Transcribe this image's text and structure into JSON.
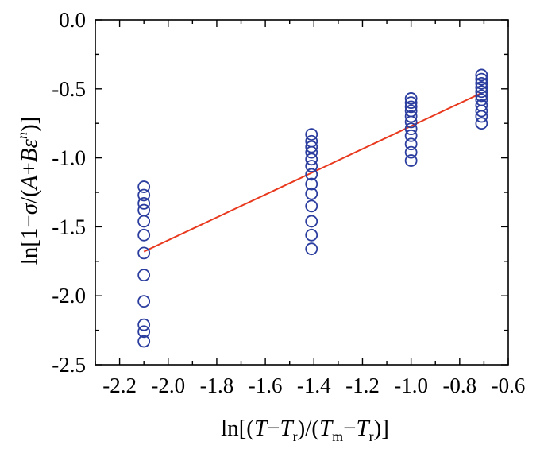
{
  "chart_data": {
    "type": "scatter",
    "title": "",
    "xlabel": "ln[(T−Tr)/(Tm−Tr)]",
    "ylabel": "ln[1−σ/(A+Bεⁿ)]",
    "xlim": [
      -2.3,
      -0.6
    ],
    "ylim": [
      -2.5,
      0.0
    ],
    "xticks": [
      "-2.2",
      "-2.0",
      "-1.8",
      "-1.6",
      "-1.4",
      "-1.2",
      "-1.0",
      "-0.8",
      "-0.6"
    ],
    "yticks": [
      "0.0",
      "-0.5",
      "-1.0",
      "-1.5",
      "-2.0",
      "-2.5"
    ],
    "grid": false,
    "series": [
      {
        "marker": "open-circle",
        "color": "#2b3d9e",
        "points": [
          [
            -2.1,
            -1.21
          ],
          [
            -2.1,
            -1.27
          ],
          [
            -2.1,
            -1.33
          ],
          [
            -2.1,
            -1.38
          ],
          [
            -2.1,
            -1.46
          ],
          [
            -2.1,
            -1.56
          ],
          [
            -2.1,
            -1.69
          ],
          [
            -2.1,
            -1.85
          ],
          [
            -2.1,
            -2.04
          ],
          [
            -2.1,
            -2.21
          ],
          [
            -2.1,
            -2.26
          ],
          [
            -2.1,
            -2.33
          ],
          [
            -1.41,
            -0.83
          ],
          [
            -1.41,
            -0.88
          ],
          [
            -1.41,
            -0.92
          ],
          [
            -1.41,
            -0.96
          ],
          [
            -1.41,
            -1.01
          ],
          [
            -1.41,
            -1.06
          ],
          [
            -1.41,
            -1.12
          ],
          [
            -1.41,
            -1.19
          ],
          [
            -1.41,
            -1.26
          ],
          [
            -1.41,
            -1.35
          ],
          [
            -1.41,
            -1.46
          ],
          [
            -1.41,
            -1.56
          ],
          [
            -1.41,
            -1.66
          ],
          [
            -1.0,
            -0.57
          ],
          [
            -1.0,
            -0.6
          ],
          [
            -1.0,
            -0.63
          ],
          [
            -1.0,
            -0.66
          ],
          [
            -1.0,
            -0.7
          ],
          [
            -1.0,
            -0.74
          ],
          [
            -1.0,
            -0.79
          ],
          [
            -1.0,
            -0.84
          ],
          [
            -1.0,
            -0.9
          ],
          [
            -1.0,
            -0.96
          ],
          [
            -1.0,
            -1.02
          ],
          [
            -0.71,
            -0.4
          ],
          [
            -0.71,
            -0.43
          ],
          [
            -0.71,
            -0.46
          ],
          [
            -0.71,
            -0.49
          ],
          [
            -0.71,
            -0.52
          ],
          [
            -0.71,
            -0.55
          ],
          [
            -0.71,
            -0.58
          ],
          [
            -0.71,
            -0.62
          ],
          [
            -0.71,
            -0.66
          ],
          [
            -0.71,
            -0.7
          ],
          [
            -0.71,
            -0.75
          ]
        ]
      },
      {
        "type": "line",
        "color": "#e8391e",
        "x": [
          -2.1,
          -0.71
        ],
        "y": [
          -1.68,
          -0.53
        ]
      }
    ]
  }
}
